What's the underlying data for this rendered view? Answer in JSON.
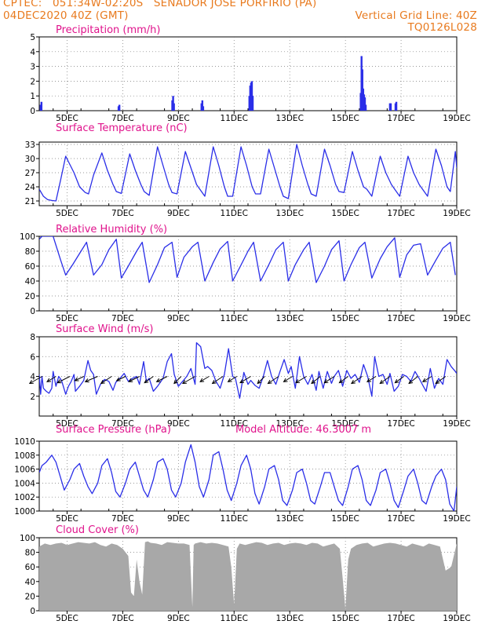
{
  "header": {
    "line1_left": "CPTEC:   051:34W-02:20S   SENADOR JOSE PORFIRIO (PA)",
    "line2_left": "04DEC2020 40Z (GMT)",
    "line2_right": "Vertical Grid Line: 40Z",
    "line3_right": "TQ0126L028"
  },
  "x_axis": {
    "ticks": [
      "5DEC",
      "7DEC",
      "9DEC",
      "11DEC",
      "13DEC",
      "15DEC",
      "17DEC",
      "19DEC"
    ],
    "tick_days": [
      5,
      7,
      9,
      11,
      13,
      15,
      17,
      19
    ],
    "range_days": [
      4,
      19
    ]
  },
  "chart_data": [
    {
      "type": "bar",
      "title": "Precipitation (mm/h)",
      "ylim": [
        0,
        5
      ],
      "yticks": [
        "0",
        "1",
        "2",
        "3",
        "4",
        "5"
      ],
      "color": "#2a2ee8",
      "points": [
        [
          4.05,
          0.4
        ],
        [
          4.08,
          0.6
        ],
        [
          6.85,
          0.3
        ],
        [
          6.88,
          0.4
        ],
        [
          8.78,
          0.7
        ],
        [
          8.81,
          1.0
        ],
        [
          8.84,
          0.5
        ],
        [
          9.83,
          0.5
        ],
        [
          9.86,
          0.7
        ],
        [
          9.89,
          0.3
        ],
        [
          11.55,
          1.0
        ],
        [
          11.58,
          1.7
        ],
        [
          11.61,
          1.9
        ],
        [
          11.64,
          2.0
        ],
        [
          11.67,
          1.0
        ],
        [
          15.55,
          1.2
        ],
        [
          15.58,
          3.7
        ],
        [
          15.61,
          2.8
        ],
        [
          15.64,
          1.5
        ],
        [
          15.67,
          1.1
        ],
        [
          15.7,
          0.9
        ],
        [
          15.73,
          0.4
        ],
        [
          16.6,
          0.5
        ],
        [
          16.63,
          0.5
        ],
        [
          16.8,
          0.5
        ],
        [
          16.83,
          0.6
        ]
      ]
    },
    {
      "type": "line",
      "title": "Surface Temperature (nC)",
      "ylim": [
        20,
        33.5
      ],
      "yticks": [
        "21",
        "24",
        "27",
        "30",
        "33"
      ],
      "color": "#2a2ee8",
      "x": [
        4.0,
        4.15,
        4.3,
        4.45,
        4.6,
        4.77,
        4.95,
        5.25,
        5.45,
        5.65,
        5.77,
        5.95,
        6.25,
        6.45,
        6.65,
        6.77,
        6.95,
        7.25,
        7.45,
        7.65,
        7.77,
        7.95,
        8.25,
        8.45,
        8.65,
        8.77,
        8.95,
        9.25,
        9.45,
        9.65,
        9.77,
        9.95,
        10.25,
        10.45,
        10.65,
        10.77,
        10.95,
        11.25,
        11.45,
        11.65,
        11.77,
        11.95,
        12.25,
        12.45,
        12.65,
        12.77,
        12.95,
        13.25,
        13.45,
        13.65,
        13.77,
        13.95,
        14.25,
        14.45,
        14.65,
        14.77,
        14.95,
        15.25,
        15.45,
        15.65,
        15.77,
        15.95,
        16.25,
        16.45,
        16.65,
        16.77,
        16.95,
        17.25,
        17.45,
        17.65,
        17.77,
        17.95,
        18.25,
        18.45,
        18.65,
        18.77,
        18.95,
        19.0
      ],
      "y": [
        23.5,
        22.0,
        21.3,
        21.1,
        21.0,
        25.5,
        30.5,
        27.0,
        24.0,
        22.8,
        22.5,
        26.5,
        31.2,
        27.5,
        24.5,
        23.0,
        22.6,
        31.0,
        27.5,
        24.5,
        23.0,
        22.2,
        32.5,
        28.5,
        24.5,
        22.8,
        22.5,
        31.5,
        28.0,
        24.5,
        23.5,
        22.0,
        32.5,
        28.5,
        24.0,
        22.0,
        22.0,
        32.5,
        28.5,
        24.0,
        22.5,
        22.5,
        32.0,
        28.0,
        24.0,
        22.0,
        21.5,
        33.0,
        28.5,
        24.5,
        22.5,
        22.0,
        32.0,
        28.5,
        24.5,
        23.0,
        22.8,
        31.5,
        27.5,
        24.0,
        23.5,
        22.0,
        30.5,
        27.0,
        24.5,
        23.5,
        22.0,
        30.5,
        27.0,
        24.5,
        23.5,
        22.0,
        32.0,
        28.5,
        24.0,
        23.0,
        31.5,
        28.0
      ]
    },
    {
      "type": "line",
      "title": "Relative Humidity (%)",
      "ylim": [
        0,
        100
      ],
      "yticks": [
        "0",
        "20",
        "40",
        "60",
        "80",
        "100"
      ],
      "color": "#2a2ee8",
      "x": [
        4.0,
        4.1,
        4.3,
        4.5,
        4.77,
        4.95,
        5.2,
        5.5,
        5.7,
        5.95,
        6.25,
        6.5,
        6.77,
        6.95,
        7.2,
        7.5,
        7.7,
        7.95,
        8.25,
        8.5,
        8.77,
        8.95,
        9.2,
        9.5,
        9.7,
        9.95,
        10.25,
        10.5,
        10.77,
        10.95,
        11.2,
        11.5,
        11.7,
        11.95,
        12.25,
        12.5,
        12.77,
        12.95,
        13.2,
        13.5,
        13.7,
        13.95,
        14.25,
        14.5,
        14.77,
        14.95,
        15.2,
        15.5,
        15.7,
        15.95,
        16.25,
        16.5,
        16.77,
        16.95,
        17.2,
        17.45,
        17.7,
        17.95,
        18.25,
        18.5,
        18.77,
        18.95
      ],
      "y": [
        96,
        100,
        100,
        100,
        68,
        48,
        62,
        80,
        92,
        48,
        62,
        82,
        96,
        44,
        60,
        80,
        92,
        38,
        62,
        85,
        92,
        45,
        72,
        86,
        92,
        40,
        65,
        83,
        93,
        40,
        58,
        80,
        92,
        40,
        62,
        82,
        92,
        40,
        62,
        82,
        92,
        38,
        60,
        82,
        94,
        40,
        62,
        85,
        92,
        44,
        70,
        86,
        98,
        45,
        75,
        88,
        90,
        48,
        68,
        84,
        92,
        48
      ]
    },
    {
      "type": "line",
      "title": "Surface Wind (m/s)",
      "ylim": [
        0,
        8
      ],
      "yticks": [
        "2",
        "4",
        "6",
        "8"
      ],
      "color": "#2a2ee8",
      "x": [
        4.0,
        4.05,
        4.1,
        4.15,
        4.25,
        4.35,
        4.45,
        4.5,
        4.6,
        4.7,
        4.8,
        4.95,
        5.05,
        5.15,
        5.25,
        5.3,
        5.45,
        5.6,
        5.75,
        5.85,
        5.95,
        6.05,
        6.2,
        6.35,
        6.5,
        6.65,
        6.75,
        6.9,
        7.05,
        7.2,
        7.35,
        7.5,
        7.6,
        7.75,
        7.85,
        7.95,
        8.1,
        8.25,
        8.45,
        8.6,
        8.75,
        8.85,
        9.0,
        9.15,
        9.3,
        9.45,
        9.6,
        9.65,
        9.8,
        9.95,
        10.05,
        10.2,
        10.35,
        10.5,
        10.65,
        10.8,
        10.95,
        11.05,
        11.2,
        11.35,
        11.5,
        11.6,
        11.75,
        11.9,
        12.05,
        12.2,
        12.35,
        12.5,
        12.65,
        12.8,
        12.95,
        13.05,
        13.2,
        13.35,
        13.5,
        13.65,
        13.8,
        13.95,
        14.05,
        14.2,
        14.35,
        14.5,
        14.6,
        14.75,
        14.9,
        15.05,
        15.2,
        15.35,
        15.5,
        15.65,
        15.8,
        15.95,
        16.05,
        16.2,
        16.35,
        16.5,
        16.6,
        16.75,
        16.9,
        17.05,
        17.2,
        17.35,
        17.5,
        17.65,
        17.8,
        17.9,
        18.05,
        18.2,
        18.35,
        18.5,
        18.65,
        18.8,
        18.95,
        19.0
      ],
      "y": [
        4.2,
        2.2,
        4.0,
        2.8,
        2.5,
        2.3,
        2.8,
        4.5,
        3.0,
        4.0,
        3.6,
        2.2,
        3.0,
        3.5,
        4.2,
        2.5,
        3.0,
        3.6,
        5.6,
        4.6,
        4.2,
        2.2,
        3.2,
        3.7,
        3.5,
        2.6,
        3.4,
        3.8,
        4.3,
        3.5,
        3.8,
        4.0,
        3.2,
        5.5,
        3.5,
        3.8,
        2.5,
        3.0,
        3.8,
        5.5,
        6.3,
        4.2,
        3.0,
        3.5,
        4.0,
        4.8,
        3.2,
        7.4,
        7.0,
        4.8,
        5.0,
        4.6,
        3.5,
        2.8,
        4.2,
        6.8,
        4.0,
        3.8,
        1.8,
        4.4,
        3.2,
        3.6,
        3.1,
        2.8,
        4.0,
        5.6,
        4.0,
        3.2,
        4.5,
        5.7,
        4.3,
        5.0,
        2.8,
        6.0,
        4.0,
        3.2,
        4.2,
        2.6,
        4.5,
        2.8,
        4.5,
        3.3,
        4.0,
        4.6,
        3.0,
        4.6,
        3.8,
        4.2,
        3.4,
        5.2,
        4.0,
        2.0,
        6.0,
        4.0,
        4.2,
        3.2,
        4.3,
        2.5,
        3.0,
        4.2,
        4.0,
        3.5,
        4.5,
        3.8,
        3.0,
        2.5,
        4.8,
        2.8,
        3.8,
        3.2,
        5.7,
        5.0,
        4.5,
        4.3
      ]
    },
    {
      "type": "line",
      "title": "Surface Pressure (hPa)",
      "title_extra": "Model Altitude: 46.3007 m",
      "ylim": [
        1000,
        1010
      ],
      "yticks": [
        "1000",
        "1002",
        "1004",
        "1006",
        "1008",
        "1010"
      ],
      "color": "#2a2ee8",
      "x": [
        4.0,
        4.1,
        4.25,
        4.45,
        4.6,
        4.75,
        4.9,
        5.1,
        5.25,
        5.45,
        5.6,
        5.75,
        5.9,
        6.1,
        6.25,
        6.45,
        6.6,
        6.75,
        6.9,
        7.1,
        7.25,
        7.45,
        7.6,
        7.75,
        7.9,
        8.1,
        8.25,
        8.45,
        8.6,
        8.75,
        8.9,
        9.1,
        9.25,
        9.45,
        9.6,
        9.75,
        9.9,
        10.1,
        10.25,
        10.45,
        10.6,
        10.75,
        10.9,
        11.1,
        11.25,
        11.45,
        11.6,
        11.75,
        11.9,
        12.1,
        12.25,
        12.45,
        12.6,
        12.75,
        12.9,
        13.1,
        13.25,
        13.45,
        13.6,
        13.75,
        13.9,
        14.1,
        14.25,
        14.45,
        14.6,
        14.75,
        14.9,
        15.1,
        15.25,
        15.45,
        15.6,
        15.75,
        15.9,
        16.1,
        16.25,
        16.45,
        16.6,
        16.75,
        16.9,
        17.1,
        17.25,
        17.45,
        17.6,
        17.75,
        17.9,
        18.1,
        18.25,
        18.45,
        18.6,
        18.75,
        18.9,
        19.0
      ],
      "y": [
        1005.5,
        1006.5,
        1007.0,
        1008.0,
        1007.0,
        1005.0,
        1003.0,
        1004.5,
        1006.0,
        1006.8,
        1005.0,
        1003.5,
        1002.5,
        1004.0,
        1006.5,
        1007.5,
        1005.5,
        1002.8,
        1002.0,
        1004.0,
        1006.0,
        1007.0,
        1005.0,
        1003.0,
        1002.0,
        1004.5,
        1007.0,
        1007.5,
        1006.0,
        1003.0,
        1002.0,
        1004.0,
        1007.0,
        1009.5,
        1007.0,
        1003.5,
        1002.0,
        1004.5,
        1008.0,
        1008.5,
        1006.0,
        1003.0,
        1001.5,
        1004.0,
        1006.5,
        1008.0,
        1006.0,
        1002.5,
        1001.0,
        1003.5,
        1006.0,
        1006.5,
        1004.5,
        1001.5,
        1000.8,
        1003.0,
        1005.5,
        1006.0,
        1004.0,
        1001.5,
        1001.0,
        1003.5,
        1005.5,
        1005.5,
        1003.5,
        1001.5,
        1000.8,
        1003.5,
        1006.0,
        1006.5,
        1004.5,
        1001.5,
        1000.8,
        1003.0,
        1005.5,
        1006.0,
        1004.0,
        1001.5,
        1000.5,
        1003.0,
        1005.0,
        1006.0,
        1004.0,
        1001.5,
        1001.0,
        1003.5,
        1005.0,
        1006.0,
        1004.5,
        1001.0,
        1000.0,
        1003.5
      ]
    },
    {
      "type": "area",
      "title": "Cloud Cover (%)",
      "ylim": [
        0,
        100
      ],
      "yticks": [
        "0",
        "20",
        "40",
        "60",
        "80",
        "100"
      ],
      "color": "#a8a8a8",
      "x": [
        4.0,
        4.2,
        4.4,
        4.6,
        4.8,
        5.0,
        5.2,
        5.4,
        5.6,
        5.8,
        6.0,
        6.2,
        6.4,
        6.6,
        6.8,
        7.0,
        7.2,
        7.3,
        7.4,
        7.5,
        7.6,
        7.7,
        7.8,
        7.9,
        8.0,
        8.2,
        8.4,
        8.6,
        8.8,
        9.0,
        9.2,
        9.4,
        9.5,
        9.55,
        9.6,
        9.8,
        10.0,
        10.2,
        10.4,
        10.6,
        10.8,
        10.9,
        11.0,
        11.1,
        11.2,
        11.4,
        11.6,
        11.8,
        12.0,
        12.2,
        12.4,
        12.6,
        12.8,
        13.0,
        13.2,
        13.4,
        13.6,
        13.8,
        14.0,
        14.2,
        14.4,
        14.6,
        14.8,
        14.9,
        15.0,
        15.1,
        15.2,
        15.4,
        15.6,
        15.8,
        16.0,
        16.2,
        16.4,
        16.6,
        16.8,
        17.0,
        17.2,
        17.4,
        17.6,
        17.8,
        18.0,
        18.2,
        18.4,
        18.6,
        18.8,
        19.0
      ],
      "y": [
        88,
        92,
        90,
        92,
        93,
        90,
        92,
        94,
        93,
        92,
        94,
        90,
        88,
        92,
        90,
        85,
        75,
        25,
        20,
        70,
        40,
        22,
        94,
        95,
        93,
        92,
        90,
        94,
        93,
        92,
        92,
        90,
        5,
        90,
        92,
        94,
        92,
        93,
        92,
        90,
        88,
        60,
        8,
        85,
        92,
        90,
        92,
        94,
        93,
        90,
        92,
        93,
        90,
        92,
        93,
        92,
        90,
        93,
        92,
        88,
        90,
        92,
        85,
        45,
        2,
        70,
        85,
        90,
        92,
        93,
        88,
        90,
        92,
        93,
        92,
        90,
        88,
        92,
        90,
        88,
        92,
        90,
        88,
        55,
        60,
        92
      ]
    }
  ],
  "wind_vectors": {
    "x": [
      4.1,
      4.6,
      5.1,
      5.6,
      6.1,
      6.6,
      7.1,
      7.6,
      8.1,
      8.6,
      9.1,
      9.6,
      10.1,
      10.6,
      11.1,
      11.6,
      12.1,
      12.6,
      13.1,
      13.6,
      14.1,
      14.6,
      15.1,
      15.6,
      16.1,
      16.6,
      17.1,
      17.6,
      18.1,
      18.6
    ],
    "u": [
      -3.5,
      -2.5,
      -3.5,
      -2.5,
      -3.5,
      -3.0,
      -2.5,
      -3.0,
      -2.5,
      -3.0,
      -2.0,
      -3.5,
      -2.5,
      -3.0,
      -2.5,
      -3.0,
      -2.0,
      -3.0,
      -2.5,
      -3.0,
      -2.5,
      -2.8,
      -2.5,
      -3.0,
      -2.5,
      -2.8,
      -2.5,
      -2.5,
      -2.5,
      -2.8
    ],
    "v": [
      -2.0,
      -1.5,
      -1.8,
      -1.2,
      -1.5,
      -2.0,
      -1.2,
      -1.5,
      -1.8,
      -1.5,
      -2.0,
      -2.0,
      -1.5,
      -2.0,
      -1.5,
      -1.8,
      -2.0,
      -2.0,
      -1.5,
      -1.8,
      -2.0,
      -1.8,
      -1.8,
      -2.0,
      -1.5,
      -2.0,
      -1.8,
      -2.0,
      -1.5,
      -2.0
    ]
  }
}
